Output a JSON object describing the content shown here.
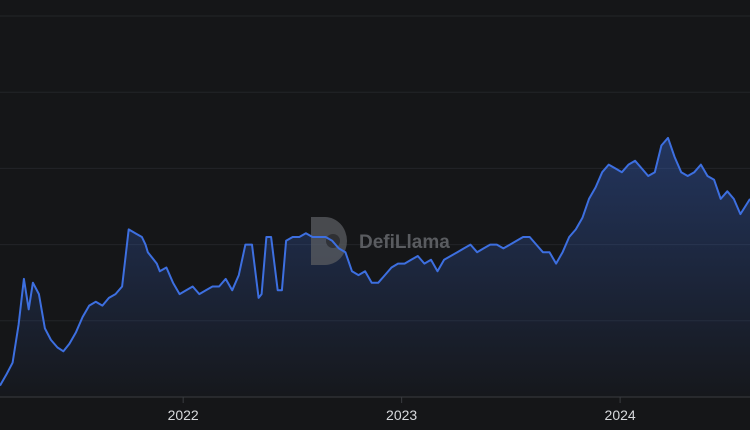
{
  "watermark": {
    "text": "DefiLlama"
  },
  "colors": {
    "background": "#151618",
    "line": "#3d6fe0",
    "grid": "#232529",
    "axis": "#3a3c40"
  },
  "chart_data": {
    "type": "area",
    "title": "",
    "xlabel": "",
    "ylabel": "",
    "x_tick_labels": [
      "2022",
      "2023",
      "2024"
    ],
    "x_tick_values": [
      "2022-01-01",
      "2023-01-01",
      "2024-01-01"
    ],
    "x_range": [
      "2021-03-01",
      "2024-08-05"
    ],
    "y_range": [
      0,
      1
    ],
    "y_grid_values": [
      0.2,
      0.4,
      0.6,
      0.8,
      1.0
    ],
    "y_tick_labels": [],
    "grid": true,
    "legend": "none",
    "series": [
      {
        "x": [
          "2021-03-01",
          "2021-03-12",
          "2021-03-22",
          "2021-04-01",
          "2021-04-10",
          "2021-04-18",
          "2021-04-25",
          "2021-05-05",
          "2021-05-15",
          "2021-05-25",
          "2021-06-05",
          "2021-06-15",
          "2021-06-25",
          "2021-07-06",
          "2021-07-17",
          "2021-07-28",
          "2021-08-08",
          "2021-08-19",
          "2021-08-30",
          "2021-09-10",
          "2021-09-21",
          "2021-10-02",
          "2021-10-13",
          "2021-10-24",
          "2021-10-30",
          "2021-11-03",
          "2021-11-08",
          "2021-11-13",
          "2021-11-18",
          "2021-11-23",
          "2021-12-04",
          "2021-12-15",
          "2021-12-26",
          "2022-01-06",
          "2022-01-17",
          "2022-01-28",
          "2022-02-08",
          "2022-02-19",
          "2022-03-02",
          "2022-03-13",
          "2022-03-24",
          "2022-04-04",
          "2022-04-15",
          "2022-04-26",
          "2022-05-07",
          "2022-05-12",
          "2022-05-20",
          "2022-05-28",
          "2022-06-08",
          "2022-06-15",
          "2022-06-22",
          "2022-07-03",
          "2022-07-14",
          "2022-07-25",
          "2022-08-05",
          "2022-08-16",
          "2022-08-27",
          "2022-09-07",
          "2022-09-18",
          "2022-09-29",
          "2022-10-10",
          "2022-10-21",
          "2022-11-01",
          "2022-11-12",
          "2022-11-23",
          "2022-12-04",
          "2022-12-15",
          "2022-12-26",
          "2023-01-06",
          "2023-01-17",
          "2023-01-28",
          "2023-02-08",
          "2023-02-19",
          "2023-03-02",
          "2023-03-13",
          "2023-03-24",
          "2023-04-04",
          "2023-04-15",
          "2023-04-26",
          "2023-05-07",
          "2023-05-18",
          "2023-05-29",
          "2023-06-09",
          "2023-06-20",
          "2023-07-01",
          "2023-07-12",
          "2023-07-23",
          "2023-08-03",
          "2023-08-14",
          "2023-08-25",
          "2023-09-05",
          "2023-09-16",
          "2023-09-27",
          "2023-10-08",
          "2023-10-19",
          "2023-10-30",
          "2023-11-10",
          "2023-11-21",
          "2023-12-02",
          "2023-12-13",
          "2023-12-24",
          "2024-01-04",
          "2024-01-15",
          "2024-01-26",
          "2024-02-06",
          "2024-02-17",
          "2024-02-28",
          "2024-03-10",
          "2024-03-21",
          "2024-04-01",
          "2024-04-12",
          "2024-04-23",
          "2024-05-04",
          "2024-05-15",
          "2024-05-26",
          "2024-06-06",
          "2024-06-17",
          "2024-06-28",
          "2024-07-09",
          "2024-07-20",
          "2024-08-05"
        ],
        "values": [
          0.03,
          0.06,
          0.09,
          0.19,
          0.31,
          0.23,
          0.3,
          0.27,
          0.18,
          0.15,
          0.13,
          0.12,
          0.14,
          0.17,
          0.21,
          0.24,
          0.25,
          0.24,
          0.26,
          0.27,
          0.29,
          0.44,
          0.43,
          0.42,
          0.4,
          0.38,
          0.37,
          0.36,
          0.35,
          0.33,
          0.34,
          0.3,
          0.27,
          0.28,
          0.29,
          0.27,
          0.28,
          0.29,
          0.29,
          0.31,
          0.28,
          0.32,
          0.4,
          0.4,
          0.26,
          0.27,
          0.42,
          0.42,
          0.28,
          0.28,
          0.41,
          0.42,
          0.42,
          0.43,
          0.42,
          0.42,
          0.42,
          0.41,
          0.39,
          0.38,
          0.33,
          0.32,
          0.33,
          0.3,
          0.3,
          0.32,
          0.34,
          0.35,
          0.35,
          0.36,
          0.37,
          0.35,
          0.36,
          0.33,
          0.36,
          0.37,
          0.38,
          0.39,
          0.4,
          0.38,
          0.39,
          0.4,
          0.4,
          0.39,
          0.4,
          0.41,
          0.42,
          0.42,
          0.4,
          0.38,
          0.38,
          0.35,
          0.38,
          0.42,
          0.44,
          0.47,
          0.52,
          0.55,
          0.59,
          0.61,
          0.6,
          0.59,
          0.61,
          0.62,
          0.6,
          0.58,
          0.59,
          0.66,
          0.68,
          0.63,
          0.59,
          0.58,
          0.59,
          0.61,
          0.58,
          0.57,
          0.52,
          0.54,
          0.52,
          0.48,
          0.52
        ]
      }
    ]
  }
}
